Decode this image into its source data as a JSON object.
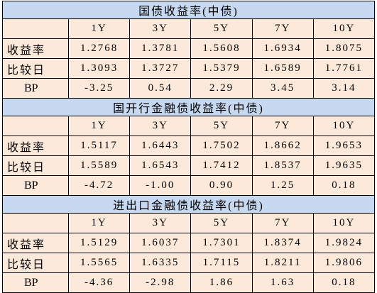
{
  "sections": [
    {
      "title": "国债收益率(中债)",
      "headers": [
        "1Y",
        "3Y",
        "5Y",
        "7Y",
        "10Y"
      ],
      "rows": [
        {
          "label": "收益率",
          "values": [
            "1.2768",
            "1.3781",
            "1.5608",
            "1.6934",
            "1.8075"
          ]
        },
        {
          "label": "比较日",
          "values": [
            "1.3093",
            "1.3727",
            "1.5379",
            "1.6589",
            "1.7761"
          ]
        },
        {
          "label": "BP",
          "values": [
            "-3.25",
            "0.54",
            "2.29",
            "3.45",
            "3.14"
          ]
        }
      ]
    },
    {
      "title": "国开行金融债收益率(中债)",
      "headers": [
        "1Y",
        "3Y",
        "5Y",
        "7Y",
        "10Y"
      ],
      "rows": [
        {
          "label": "收益率",
          "values": [
            "1.5117",
            "1.6443",
            "1.7502",
            "1.8662",
            "1.9653"
          ]
        },
        {
          "label": "比较日",
          "values": [
            "1.5589",
            "1.6543",
            "1.7412",
            "1.8537",
            "1.9635"
          ]
        },
        {
          "label": "BP",
          "values": [
            "-4.72",
            "-1.00",
            "0.90",
            "1.25",
            "0.18"
          ]
        }
      ]
    },
    {
      "title": "进出口金融债收益率(中债)",
      "headers": [
        "1Y",
        "3Y",
        "5Y",
        "7Y",
        "10Y"
      ],
      "rows": [
        {
          "label": "收益率",
          "values": [
            "1.5129",
            "1.6037",
            "1.7301",
            "1.8374",
            "1.9824"
          ]
        },
        {
          "label": "比较日",
          "values": [
            "1.5565",
            "1.6335",
            "1.7115",
            "1.8211",
            "1.9806"
          ]
        },
        {
          "label": "BP",
          "values": [
            "-4.36",
            "-2.98",
            "1.86",
            "1.63",
            "0.18"
          ]
        }
      ]
    }
  ]
}
